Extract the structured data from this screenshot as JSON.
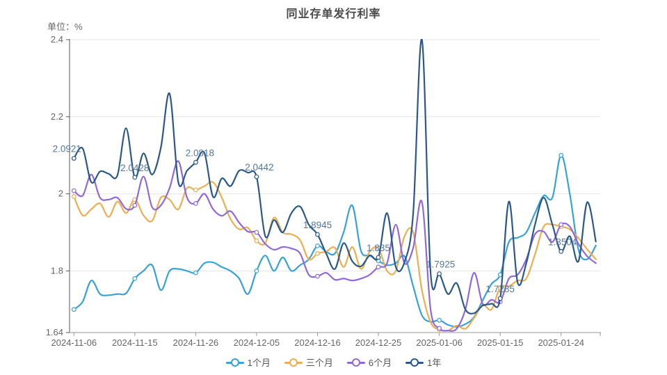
{
  "chart_data": {
    "type": "line",
    "title": "同业存单发行利率",
    "unit": "单位：%",
    "grid": true,
    "legend_position": "bottom",
    "colors": {
      "grid": "#e4e4e4",
      "y_axis": "#555555",
      "x_axis": "#999999",
      "text": "#666666",
      "annotation": "#53779f"
    },
    "y_axis": {
      "min": 1.64,
      "max": 2.4,
      "ticks": [
        2.4,
        2.2,
        2.0,
        1.8,
        1.64
      ],
      "tick_labels": [
        "2.4",
        "2.2",
        "2",
        "1.8",
        "1.64"
      ]
    },
    "x_axis": {
      "point_count": 61,
      "tick_indices": [
        0,
        7,
        14,
        21,
        28,
        35,
        42,
        49,
        56
      ],
      "tick_labels": [
        "2024-11-06",
        "2024-11-15",
        "2024-11-26",
        "2024-12-05",
        "2024-12-16",
        "2024-12-25",
        "2025-01-06",
        "2025-01-15",
        "2025-01-24"
      ]
    },
    "marker_every": 7,
    "series": [
      {
        "name": "1个月",
        "color": "#36a2da",
        "values": [
          1.7,
          1.72,
          1.775,
          1.74,
          1.737,
          1.74,
          1.742,
          1.78,
          1.8,
          1.815,
          1.75,
          1.8,
          1.805,
          1.8,
          1.795,
          1.82,
          1.822,
          1.81,
          1.8,
          1.78,
          1.74,
          1.8,
          1.84,
          1.8,
          1.835,
          1.8,
          1.815,
          1.83,
          1.865,
          1.85,
          1.845,
          1.9,
          1.97,
          1.852,
          1.84,
          1.826,
          1.815,
          1.82,
          1.838,
          1.76,
          1.685,
          1.668,
          1.672,
          1.66,
          1.655,
          1.662,
          1.68,
          1.724,
          1.766,
          1.79,
          1.875,
          1.886,
          1.9,
          1.95,
          1.995,
          1.99,
          2.1,
          2.0,
          1.855,
          1.83,
          1.866
        ]
      },
      {
        "name": "三个月",
        "color": "#efad4d",
        "values": [
          1.993,
          1.944,
          1.96,
          1.975,
          1.94,
          1.98,
          1.95,
          1.985,
          1.944,
          1.93,
          1.99,
          1.985,
          1.96,
          2.015,
          2.01,
          2.02,
          2.03,
          1.99,
          1.935,
          1.908,
          1.912,
          1.878,
          1.872,
          1.938,
          1.9,
          1.895,
          1.88,
          1.83,
          1.845,
          1.85,
          1.86,
          1.81,
          1.862,
          1.805,
          1.85,
          1.859,
          1.8,
          1.8,
          1.89,
          1.9,
          1.75,
          1.667,
          1.648,
          1.645,
          1.658,
          1.65,
          1.678,
          1.712,
          1.7,
          1.757,
          1.76,
          1.775,
          1.78,
          1.843,
          1.915,
          1.92,
          1.915,
          1.908,
          1.885,
          1.856,
          1.83
        ]
      },
      {
        "name": "6个月",
        "color": "#9168db",
        "values": [
          2.008,
          1.995,
          2.05,
          1.99,
          1.985,
          1.99,
          1.961,
          1.97,
          2.045,
          1.965,
          1.97,
          2.015,
          2.085,
          1.99,
          1.975,
          2.0,
          1.96,
          1.943,
          1.955,
          1.925,
          1.902,
          1.9,
          1.87,
          1.855,
          1.862,
          1.858,
          1.845,
          1.79,
          1.786,
          1.795,
          1.777,
          1.78,
          1.775,
          1.78,
          1.79,
          1.81,
          1.82,
          1.92,
          1.82,
          1.86,
          1.979,
          1.7,
          1.651,
          1.645,
          1.65,
          1.7,
          1.795,
          1.714,
          1.725,
          1.72,
          1.78,
          1.79,
          1.83,
          1.895,
          1.902,
          1.875,
          1.92,
          1.915,
          1.87,
          1.838,
          1.82
        ]
      },
      {
        "name": "1年",
        "color": "#29588a",
        "values": [
          2.0921,
          2.118,
          2.03,
          2.058,
          2.052,
          2.048,
          2.17,
          2.0428,
          2.105,
          2.05,
          2.12,
          2.26,
          2.03,
          2.06,
          2.0818,
          2.106,
          1.992,
          2.04,
          2.02,
          2.06,
          2.055,
          2.0442,
          1.89,
          1.932,
          1.9,
          1.95,
          1.967,
          1.92,
          1.8945,
          1.845,
          1.805,
          1.872,
          1.825,
          1.812,
          1.84,
          1.835,
          1.95,
          1.81,
          1.823,
          1.95,
          2.4,
          1.795,
          1.7925,
          1.74,
          1.768,
          1.7,
          1.69,
          1.71,
          1.715,
          1.7285,
          1.98,
          1.77,
          1.82,
          1.92,
          1.99,
          1.92,
          1.8504,
          1.89,
          1.825,
          1.978,
          1.876
        ],
        "annotations": [
          {
            "index": 0,
            "label": "2.0921",
            "dx": -10
          },
          {
            "index": 7,
            "label": "2.0428",
            "dx": 0
          },
          {
            "index": 14,
            "label": "2.0818",
            "dx": 6
          },
          {
            "index": 21,
            "label": "2.0442",
            "dx": 4
          },
          {
            "index": 28,
            "label": "1.8945",
            "dx": 0
          },
          {
            "index": 35,
            "label": "1.835",
            "dx": 0
          },
          {
            "index": 42,
            "label": "1.7925",
            "dx": 2
          },
          {
            "index": 49,
            "label": "1.7285",
            "dx": 0
          },
          {
            "index": 56,
            "label": "1.8504",
            "dx": 2
          }
        ]
      }
    ]
  }
}
